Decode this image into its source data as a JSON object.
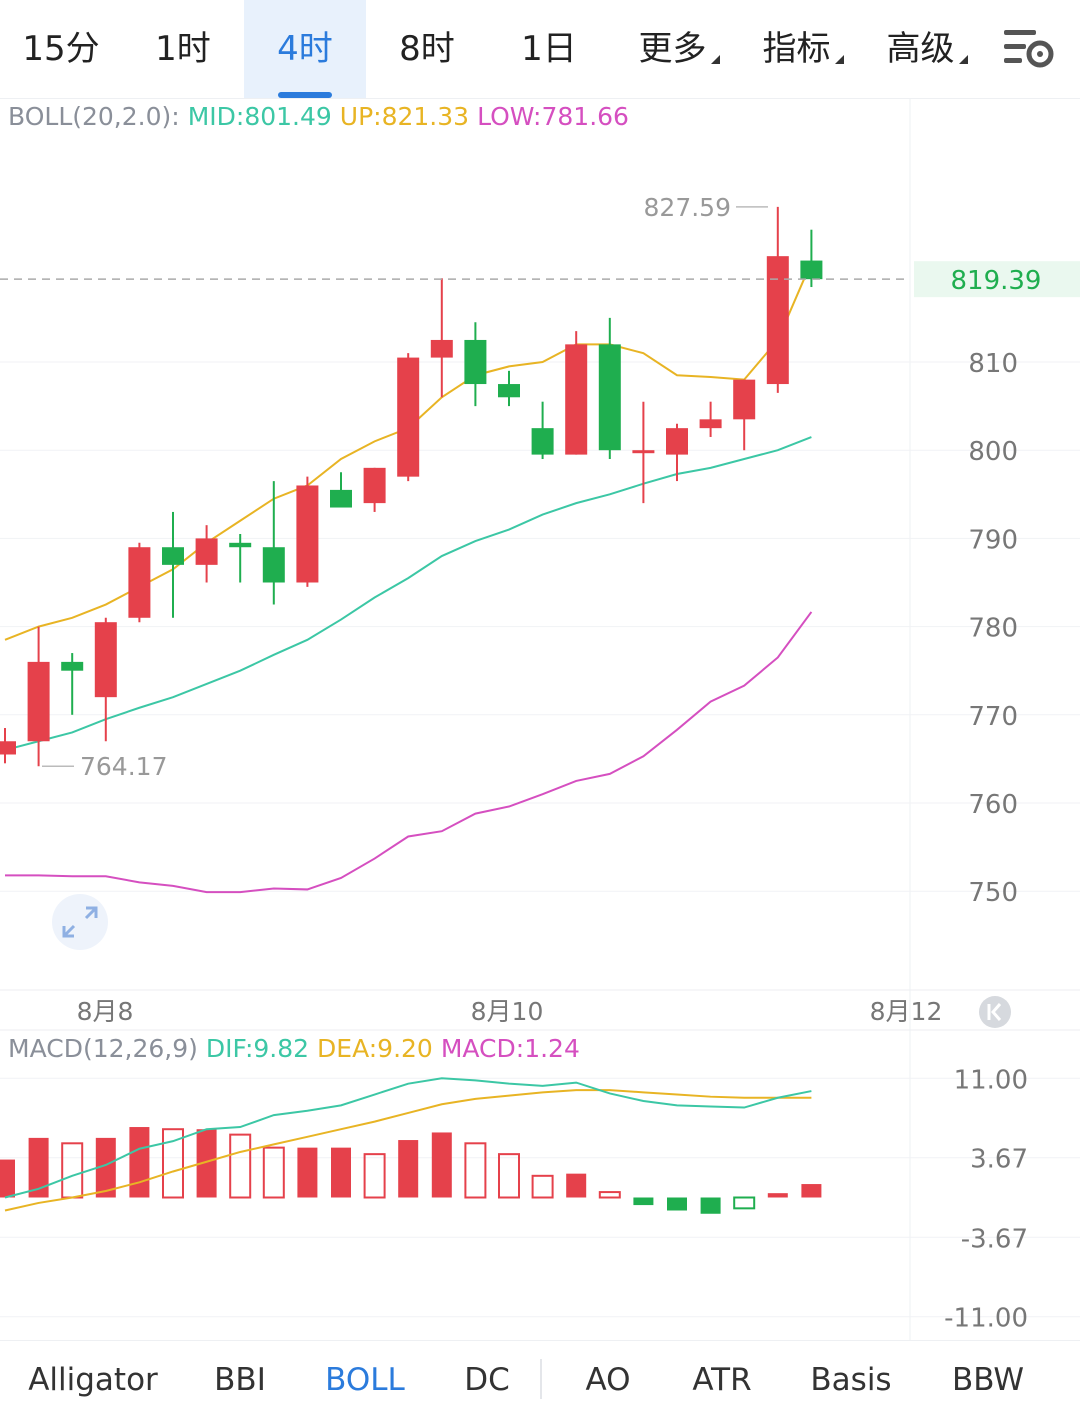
{
  "interval_tabs": [
    "15分",
    "1时",
    "4时",
    "8时",
    "1日"
  ],
  "active_interval": "4时",
  "menu_tabs": [
    "更多",
    "指标",
    "高级"
  ],
  "settings_icon": "chart-settings-icon",
  "boll_legend": {
    "prefix": "BOLL(20,2.0):",
    "mid": "MID:801.49",
    "up": "UP:821.33",
    "low": "LOW:781.66"
  },
  "macd_legend": {
    "prefix": "MACD(12,26,9)",
    "dif": "DIF:9.82",
    "dea": "DEA:9.20",
    "macd": "MACD:1.24"
  },
  "colors": {
    "up_candle": "#e5414b",
    "down_candle": "#1fae4f",
    "mid_line": "#3cc7a5",
    "up_line": "#e8b424",
    "low_line": "#d54fc0",
    "dif_line": "#3cc7a5",
    "dea_line": "#e8b424",
    "accent": "#2b7bdc"
  },
  "price_axis": [
    "810",
    "800",
    "790",
    "780",
    "770",
    "760",
    "750"
  ],
  "macd_axis": [
    "11.00",
    "3.67",
    "-3.67",
    "-11.00"
  ],
  "date_axis": [
    "8月8",
    "8月10",
    "8月12"
  ],
  "last_price": "819.39",
  "high_marker": "827.59",
  "low_marker": "764.17",
  "chart_data": {
    "type": "candlestick",
    "candles": [
      {
        "o": 765.5,
        "h": 768.5,
        "l": 764.5,
        "c": 767.0
      },
      {
        "o": 767.0,
        "h": 780.0,
        "l": 764.17,
        "c": 776.0
      },
      {
        "o": 776.0,
        "h": 777.0,
        "l": 770.0,
        "c": 775.0
      },
      {
        "o": 772.0,
        "h": 781.0,
        "l": 767.0,
        "c": 780.5
      },
      {
        "o": 781.0,
        "h": 789.5,
        "l": 780.5,
        "c": 789.0
      },
      {
        "o": 789.0,
        "h": 793.0,
        "l": 781.0,
        "c": 787.0
      },
      {
        "o": 787.0,
        "h": 791.5,
        "l": 785.0,
        "c": 790.0
      },
      {
        "o": 789.5,
        "h": 790.5,
        "l": 785.0,
        "c": 789.0
      },
      {
        "o": 789.0,
        "h": 796.5,
        "l": 782.5,
        "c": 785.0
      },
      {
        "o": 785.0,
        "h": 797.0,
        "l": 784.5,
        "c": 796.0
      },
      {
        "o": 795.5,
        "h": 797.5,
        "l": 794.0,
        "c": 793.5
      },
      {
        "o": 794.0,
        "h": 798.0,
        "l": 793.0,
        "c": 798.0
      },
      {
        "o": 797.0,
        "h": 811.0,
        "l": 796.5,
        "c": 810.5
      },
      {
        "o": 810.5,
        "h": 819.5,
        "l": 806.0,
        "c": 812.5
      },
      {
        "o": 812.5,
        "h": 814.5,
        "l": 805.0,
        "c": 807.5
      },
      {
        "o": 807.5,
        "h": 809.0,
        "l": 805.0,
        "c": 806.0
      },
      {
        "o": 802.5,
        "h": 805.5,
        "l": 799.0,
        "c": 799.5
      },
      {
        "o": 799.5,
        "h": 813.5,
        "l": 799.5,
        "c": 812.0
      },
      {
        "o": 812.0,
        "h": 815.0,
        "l": 799.0,
        "c": 800.0
      },
      {
        "o": 800.0,
        "h": 805.5,
        "l": 794.0,
        "c": 800.0
      },
      {
        "o": 799.5,
        "h": 803.0,
        "l": 796.5,
        "c": 802.5
      },
      {
        "o": 802.5,
        "h": 805.5,
        "l": 801.5,
        "c": 803.5
      },
      {
        "o": 803.5,
        "h": 808.0,
        "l": 800.0,
        "c": 808.0
      },
      {
        "o": 807.5,
        "h": 827.59,
        "l": 806.5,
        "c": 822.0
      },
      {
        "o": 821.5,
        "h": 825.0,
        "l": 818.5,
        "c": 819.39
      }
    ],
    "boll_mid": [
      766.0,
      767.0,
      768.0,
      769.5,
      770.8,
      772.0,
      773.5,
      775.0,
      776.8,
      778.5,
      780.8,
      783.3,
      785.5,
      788.0,
      789.7,
      791.0,
      792.7,
      794.0,
      795.0,
      796.2,
      797.3,
      798.0,
      799.0,
      800.0,
      801.49
    ],
    "boll_up": [
      778.5,
      780.0,
      781.0,
      782.5,
      784.5,
      786.5,
      789.5,
      792.0,
      794.5,
      796.0,
      799.0,
      801.0,
      802.5,
      806.0,
      808.5,
      809.5,
      810.0,
      812.0,
      812.0,
      811.0,
      808.5,
      808.3,
      808.0,
      812.5,
      821.33
    ],
    "boll_low": [
      751.8,
      751.8,
      751.7,
      751.7,
      751.0,
      750.6,
      749.9,
      749.9,
      750.3,
      750.2,
      751.5,
      753.7,
      756.2,
      756.8,
      758.8,
      759.6,
      761.0,
      762.5,
      763.3,
      765.3,
      768.3,
      771.5,
      773.3,
      776.5,
      781.66
    ],
    "macd_hist": [
      3.5,
      5.5,
      5.0,
      5.5,
      6.5,
      6.3,
      6.3,
      5.8,
      4.6,
      4.6,
      4.6,
      4.0,
      5.3,
      6.0,
      5.0,
      4.0,
      2.0,
      2.2,
      0.5,
      -0.7,
      -1.2,
      -1.5,
      -1.0,
      0.4,
      1.24
    ],
    "macd_dif": [
      0.0,
      0.8,
      2.0,
      3.0,
      4.5,
      5.2,
      6.3,
      6.5,
      7.6,
      8.0,
      8.5,
      9.5,
      10.5,
      11.0,
      10.8,
      10.5,
      10.3,
      10.6,
      9.6,
      8.9,
      8.5,
      8.4,
      8.3,
      9.2,
      9.82
    ],
    "macd_dea": [
      -1.2,
      -0.5,
      0.0,
      0.6,
      1.4,
      2.4,
      3.3,
      4.2,
      4.9,
      5.6,
      6.3,
      7.0,
      7.8,
      8.6,
      9.1,
      9.4,
      9.7,
      9.9,
      9.9,
      9.7,
      9.5,
      9.3,
      9.2,
      9.2,
      9.2
    ]
  },
  "indicator_tabs": [
    "Alligator",
    "BBI",
    "BOLL",
    "DC",
    "AO",
    "ATR",
    "Basis",
    "BBW"
  ],
  "active_indicator": "BOLL"
}
